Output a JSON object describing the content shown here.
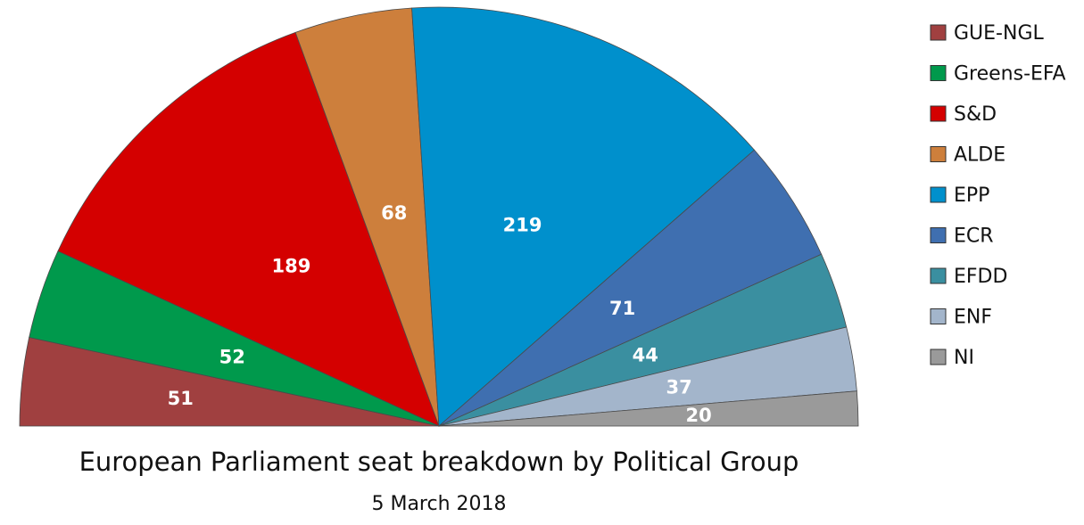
{
  "chart_data": {
    "type": "pie",
    "variant": "semicircle",
    "title": "European Parliament seat breakdown by Political Group",
    "subtitle": "5 March 2018",
    "legend_position": "right",
    "categories": [
      "GUE-NGL",
      "Greens-EFA",
      "S&D",
      "ALDE",
      "EPP",
      "ECR",
      "EFDD",
      "ENF",
      "NI"
    ],
    "values": [
      51,
      52,
      189,
      68,
      219,
      71,
      44,
      37,
      20
    ],
    "colors": [
      "#a04040",
      "#00994c",
      "#d40000",
      "#cd7f3c",
      "#0090cc",
      "#3f6fb0",
      "#3a8fa0",
      "#a3b5cb",
      "#9a9a9a"
    ]
  }
}
